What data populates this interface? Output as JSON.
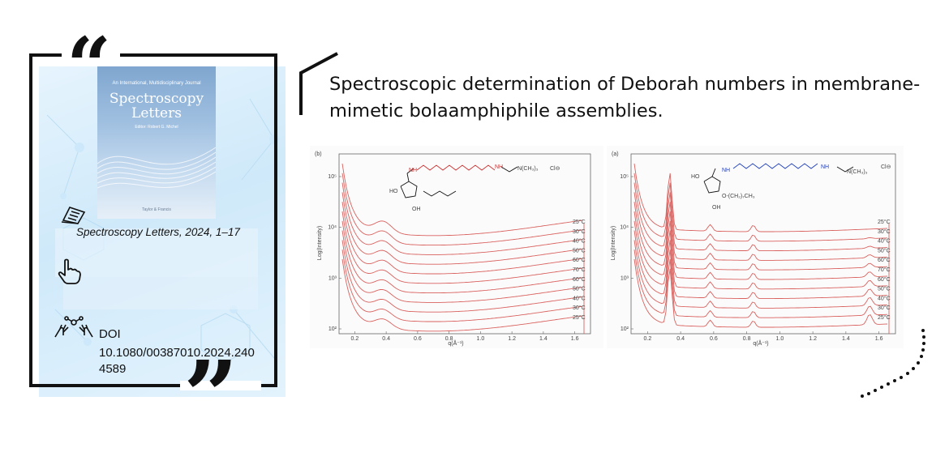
{
  "article": {
    "title": "Spectroscopic determination of Deborah numbers in membrane-mimetic bolaamphiphile assemblies."
  },
  "journal": {
    "cover": {
      "tagline": "An International, Multidisciplinary Journal",
      "name_line1": "Spectroscopy",
      "name_line2": "Letters",
      "editor": "Editor: Robert G. Michel",
      "publisher": "Taylor & Francis"
    },
    "citation": "Spectroscopy Letters, 2024, 1–17"
  },
  "doi": {
    "label": "DOI",
    "value": "10.1080/00387010.2024.2404589"
  },
  "icons": {
    "citation": "newspaper-icon",
    "pointer": "hand-pointer-icon",
    "doi": "hands-network-icon"
  },
  "colors": {
    "accent": "#111111",
    "card_background": "#d6ecfa",
    "curve": "#d9625f"
  },
  "chart_data": [
    {
      "type": "line",
      "panel_label": "(b)",
      "xlabel": "q(Å⁻¹)",
      "ylabel": "Log(Intensity)",
      "x_ticks": [
        "0.2",
        "0.4",
        "0.6",
        "0.8",
        "1.0",
        "1.2",
        "1.4",
        "1.6"
      ],
      "y_ticks": [
        "10⁵",
        "10⁴",
        "10³",
        "10²"
      ],
      "series": [
        {
          "name": "25°C"
        },
        {
          "name": "30°C"
        },
        {
          "name": "40°C"
        },
        {
          "name": "50°C"
        },
        {
          "name": "60°C"
        },
        {
          "name": "70°C"
        },
        {
          "name": "60°C"
        },
        {
          "name": "50°C"
        },
        {
          "name": "40°C"
        },
        {
          "name": "30°C"
        },
        {
          "name": "25°C"
        }
      ],
      "annotation": "Cl⊖"
    },
    {
      "type": "line",
      "panel_label": "(a)",
      "xlabel": "q(Å⁻¹)",
      "ylabel": "Log(Intensity)",
      "x_ticks": [
        "0.2",
        "0.4",
        "0.6",
        "0.8",
        "1.0",
        "1.2",
        "1.4",
        "1.6"
      ],
      "y_ticks": [
        "10⁵",
        "10⁴",
        "10³",
        "10²"
      ],
      "series": [
        {
          "name": "25°C"
        },
        {
          "name": "30°C"
        },
        {
          "name": "40°C"
        },
        {
          "name": "50°C"
        },
        {
          "name": "60°C"
        },
        {
          "name": "70°C"
        },
        {
          "name": "60°C"
        },
        {
          "name": "50°C"
        },
        {
          "name": "40°C"
        },
        {
          "name": "30°C"
        },
        {
          "name": "25°C"
        }
      ],
      "annotation": "Cl⊖"
    }
  ]
}
